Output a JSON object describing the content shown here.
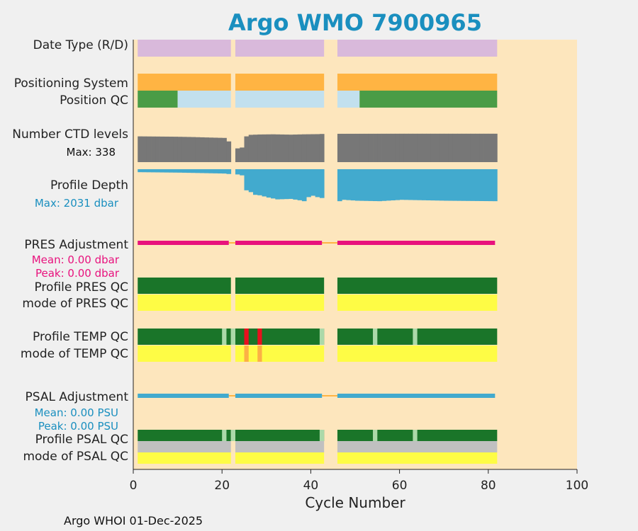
{
  "chart_data": {
    "type": "bar",
    "title": "Argo WMO 7900965",
    "xlabel": "Cycle Number",
    "xlim": [
      0,
      100
    ],
    "xticks": [
      "0",
      "20",
      "40",
      "60",
      "80",
      "100"
    ],
    "footer": "Argo WHOI 01-Dec-2025",
    "colors": {
      "background": "#fde6bd",
      "title": "#1a8fbf",
      "delayed": "#d9b9db",
      "gps": "#ffb443",
      "qc_good": "#4a9c46",
      "qc_interp": "#c2e0ee",
      "ctd": "#777777",
      "depth": "#42aace",
      "pres_adj": "#e8127d",
      "psal_adj": "#42aace",
      "adj_gap": "#ffb443",
      "qc_A": "#1a7529",
      "qc_B": "#abd9a9",
      "qc_F": "#e8101e",
      "mode_1": "#fefc45",
      "mode_4": "#fcb045",
      "mode_grey": "#c0c0c0"
    },
    "cycles": {
      "present": [
        [
          1,
          21
        ],
        [
          23,
          42
        ],
        [
          46,
          81
        ]
      ],
      "delayed_mode_bar": "D",
      "position_qc": [
        {
          "from": 1,
          "to": 9,
          "flag": "good"
        },
        {
          "from": 10,
          "to": 21,
          "flag": "interp"
        },
        {
          "from": 23,
          "to": 42,
          "flag": "interp"
        },
        {
          "from": 46,
          "to": 50,
          "flag": "interp"
        },
        {
          "from": 51,
          "to": 81,
          "flag": "good"
        }
      ],
      "ctd_levels": [
        [
          1,
          300
        ],
        [
          5,
          298
        ],
        [
          9,
          296
        ],
        [
          13,
          292
        ],
        [
          17,
          286
        ],
        [
          20,
          282
        ],
        [
          23,
          160
        ],
        [
          24,
          170
        ],
        [
          25,
          300
        ],
        [
          26,
          318
        ],
        [
          28,
          322
        ],
        [
          31,
          324
        ],
        [
          35,
          320
        ],
        [
          38,
          324
        ],
        [
          41,
          326
        ],
        [
          42,
          328
        ],
        [
          46,
          330
        ],
        [
          60,
          331
        ],
        [
          81,
          331
        ]
      ],
      "profile_depth": [
        [
          1,
          1900
        ],
        [
          10,
          1880
        ],
        [
          20,
          1840
        ],
        [
          21,
          1820
        ],
        [
          23,
          1800
        ],
        [
          24,
          1760
        ],
        [
          25,
          1100
        ],
        [
          26,
          1020
        ],
        [
          27,
          900
        ],
        [
          28,
          880
        ],
        [
          30,
          780
        ],
        [
          32,
          700
        ],
        [
          35,
          720
        ],
        [
          37,
          660
        ],
        [
          38,
          620
        ],
        [
          39,
          800
        ],
        [
          40,
          860
        ],
        [
          41,
          800
        ],
        [
          42,
          760
        ],
        [
          46,
          620
        ],
        [
          47,
          680
        ],
        [
          50,
          640
        ],
        [
          55,
          620
        ],
        [
          60,
          680
        ],
        [
          70,
          640
        ],
        [
          81,
          620
        ]
      ],
      "temp_qc_B": [
        20,
        22,
        42,
        54,
        63
      ],
      "temp_qc_F": [
        25,
        28
      ],
      "psal_qc_B": [
        20,
        22,
        42,
        54,
        63
      ]
    },
    "rows": [
      {
        "name": "date-type-row",
        "label": "Date Type (R/D)"
      },
      {
        "name": "positioning-system-row",
        "label": "Positioning System"
      },
      {
        "name": "position-qc-row",
        "label": "Position QC"
      },
      {
        "name": "number-ctd-levels-row",
        "label": "Number CTD levels"
      },
      {
        "name": "profile-depth-row",
        "label": "Profile Depth"
      },
      {
        "name": "pres-adjustment-row",
        "label": "PRES Adjustment"
      },
      {
        "name": "profile-pres-qc-row",
        "label": "Profile PRES QC"
      },
      {
        "name": "mode-pres-qc-row",
        "label": "mode of PRES QC"
      },
      {
        "name": "profile-temp-qc-row",
        "label": "Profile TEMP QC"
      },
      {
        "name": "mode-temp-qc-row",
        "label": "mode of TEMP QC"
      },
      {
        "name": "psal-adjustment-row",
        "label": "PSAL Adjustment"
      },
      {
        "name": "profile-psal-qc-row",
        "label": "Profile PSAL QC"
      },
      {
        "name": "mode-psal-qc-row",
        "label": "mode of PSAL QC"
      }
    ],
    "annotations": {
      "ctd_max": "Max: 338",
      "depth_max": "Max: 2031 dbar",
      "pres_mean": "Mean: 0.00 dbar",
      "pres_peak": "Peak: 0.00 dbar",
      "psal_mean": "Mean: 0.00 PSU",
      "psal_peak": "Peak: 0.00 PSU"
    }
  }
}
